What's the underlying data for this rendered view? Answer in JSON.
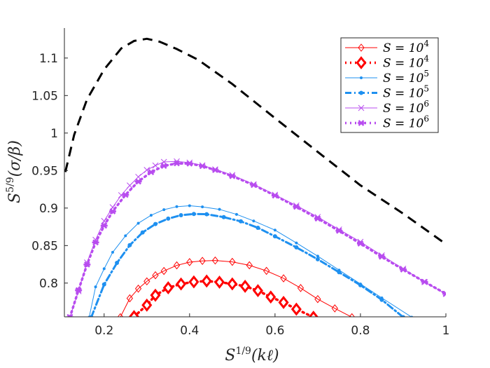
{
  "chart_data": {
    "type": "line",
    "title": "",
    "xlabel": {
      "base": "S",
      "exp": "1/9",
      "rest": "(kℓ)"
    },
    "ylabel": {
      "base": "S",
      "exp": "5/9",
      "rest": "(σ/β)"
    },
    "xlim": [
      0.107,
      1.0
    ],
    "ylim": [
      0.755,
      1.14
    ],
    "xticks": [
      0.2,
      0.4,
      0.6,
      0.8,
      1.0
    ],
    "xtick_labels": [
      "0.2",
      "0.4",
      "0.6",
      "0.8",
      "1"
    ],
    "yticks": [
      0.8,
      0.85,
      0.9,
      0.95,
      1.0,
      1.05,
      1.1
    ],
    "ytick_labels": [
      "0.8",
      "0.85",
      "0.9",
      "0.95",
      "1",
      "1.05",
      "1.1"
    ],
    "legend_position": "top-right",
    "series": [
      {
        "name": "envelope",
        "legend": false,
        "color": "#000000",
        "style": "dashed",
        "marker": "none",
        "x": [
          0.0596,
          0.08,
          0.1,
          0.13,
          0.16,
          0.2,
          0.24,
          0.27,
          0.3,
          0.33,
          0.37,
          0.42,
          0.5,
          0.6,
          0.7,
          0.8,
          0.9,
          1.0
        ],
        "y": [
          0.7568,
          0.8462,
          0.9259,
          0.9978,
          1.0449,
          1.0848,
          1.1128,
          1.1228,
          1.1257,
          1.1218,
          1.1121,
          1.0977,
          1.0654,
          1.0198,
          0.9749,
          0.9303,
          0.8926,
          0.852
        ]
      },
      {
        "name": "S = 10^4",
        "legend": true,
        "label_base": "S = 10",
        "label_exp": "4",
        "color": "#FF0000",
        "style": "solid",
        "width": 1,
        "marker": "diamond-open",
        "marker_size": 5,
        "x": [
          0.238,
          0.26,
          0.28,
          0.3,
          0.32,
          0.34,
          0.37,
          0.4,
          0.43,
          0.46,
          0.5,
          0.54,
          0.58,
          0.62,
          0.66,
          0.7,
          0.74,
          0.78
        ],
        "y": [
          0.7545,
          0.7797,
          0.7926,
          0.8023,
          0.8104,
          0.8161,
          0.8236,
          0.8279,
          0.8296,
          0.8301,
          0.8283,
          0.8237,
          0.8163,
          0.8063,
          0.7934,
          0.7786,
          0.7663,
          0.7545
        ]
      },
      {
        "name": "S = 10^4",
        "legend": true,
        "label_base": "S = 10",
        "label_exp": "4",
        "color": "#FF0000",
        "style": "dotted",
        "width": 3.5,
        "marker": "diamond-filled",
        "marker_size": 7,
        "x": [
          0.27,
          0.3,
          0.32,
          0.35,
          0.38,
          0.41,
          0.44,
          0.47,
          0.5,
          0.53,
          0.56,
          0.59,
          0.62,
          0.65,
          0.69
        ],
        "y": [
          0.7553,
          0.7706,
          0.7838,
          0.7937,
          0.7988,
          0.8016,
          0.8027,
          0.8012,
          0.7989,
          0.7957,
          0.7899,
          0.7814,
          0.7742,
          0.7652,
          0.7545
        ]
      },
      {
        "name": "S = 10^5",
        "legend": true,
        "label_base": "S = 10",
        "label_exp": "5",
        "color": "#1E90F0",
        "style": "solid",
        "width": 1,
        "marker": "dot",
        "marker_size": 2,
        "x": [
          0.165,
          0.18,
          0.2,
          0.22,
          0.25,
          0.28,
          0.31,
          0.34,
          0.37,
          0.4,
          0.43,
          0.47,
          0.51,
          0.55,
          0.6,
          0.65,
          0.7,
          0.75,
          0.8,
          0.85,
          0.92
        ],
        "y": [
          0.7545,
          0.795,
          0.8191,
          0.8411,
          0.863,
          0.8798,
          0.8904,
          0.8979,
          0.9019,
          0.9031,
          0.9016,
          0.8983,
          0.8916,
          0.8828,
          0.8706,
          0.8535,
          0.8359,
          0.8173,
          0.7988,
          0.7802,
          0.7545
        ]
      },
      {
        "name": "S = 10^5",
        "legend": true,
        "label_base": "S = 10",
        "label_exp": "5",
        "color": "#1E90F0",
        "style": "dashdot",
        "width": 3,
        "marker": "dot",
        "marker_size": 3,
        "x": [
          0.17,
          0.2,
          0.23,
          0.26,
          0.29,
          0.32,
          0.35,
          0.38,
          0.41,
          0.44,
          0.48,
          0.52,
          0.56,
          0.6,
          0.65,
          0.7,
          0.75,
          0.8,
          0.85,
          0.9
        ],
        "y": [
          0.7545,
          0.7982,
          0.8269,
          0.8505,
          0.8675,
          0.8787,
          0.8859,
          0.8905,
          0.8921,
          0.8918,
          0.8879,
          0.8823,
          0.8737,
          0.8623,
          0.8476,
          0.8317,
          0.8144,
          0.7972,
          0.7777,
          0.7545
        ]
      },
      {
        "name": "S = 10^6",
        "legend": true,
        "label_base": "S = 10",
        "label_exp": "6",
        "color": "#B84CEF",
        "style": "solid",
        "width": 1,
        "marker": "x",
        "marker_size": 4,
        "x": [
          0.12,
          0.14,
          0.16,
          0.18,
          0.2,
          0.22,
          0.24,
          0.26,
          0.28,
          0.3,
          0.32,
          0.34,
          0.37,
          0.4,
          0.43,
          0.46,
          0.5,
          0.55,
          0.6,
          0.65,
          0.7,
          0.75,
          0.8,
          0.85,
          0.9,
          0.95,
          1.0
        ],
        "y": [
          0.7545,
          0.7892,
          0.8274,
          0.8577,
          0.8828,
          0.9011,
          0.9172,
          0.9301,
          0.9416,
          0.9508,
          0.9567,
          0.9615,
          0.9622,
          0.9606,
          0.957,
          0.9516,
          0.944,
          0.9316,
          0.9177,
          0.9034,
          0.8881,
          0.8714,
          0.855,
          0.8369,
          0.8191,
          0.8014,
          0.7855
        ]
      },
      {
        "name": "S = 10^6",
        "legend": true,
        "label_base": "S = 10",
        "label_exp": "6",
        "color": "#B84CEF",
        "style": "dotted",
        "width": 3.5,
        "marker": "asterisk",
        "marker_size": 5,
        "x": [
          0.12,
          0.14,
          0.16,
          0.18,
          0.2,
          0.22,
          0.25,
          0.28,
          0.31,
          0.34,
          0.37,
          0.4,
          0.43,
          0.46,
          0.5,
          0.55,
          0.6,
          0.65,
          0.7,
          0.75,
          0.8,
          0.85,
          0.9,
          0.95,
          1.0
        ],
        "y": [
          0.7545,
          0.7905,
          0.8247,
          0.8542,
          0.8765,
          0.8956,
          0.9176,
          0.9354,
          0.9479,
          0.9563,
          0.9596,
          0.9593,
          0.956,
          0.9508,
          0.9426,
          0.9308,
          0.9167,
          0.9017,
          0.886,
          0.8697,
          0.8527,
          0.8351,
          0.8181,
          0.8016,
          0.7857
        ]
      }
    ]
  }
}
